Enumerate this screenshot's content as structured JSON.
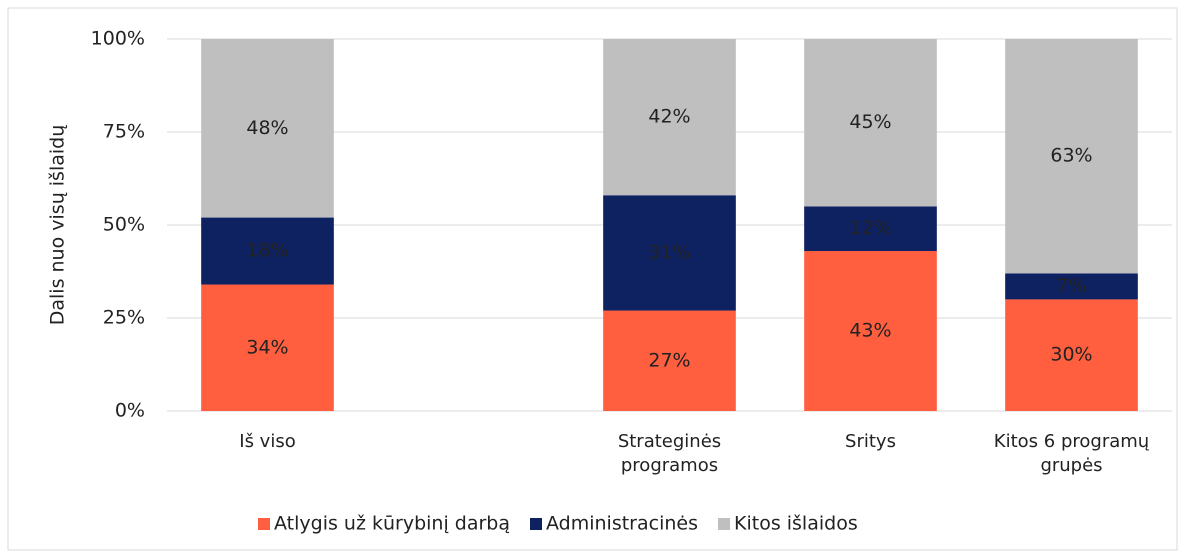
{
  "chart_data": {
    "type": "stacked_bar",
    "y_label": "Dalis nuo visų išlaidų",
    "categories": [
      "Iš viso",
      null,
      "Strateginės programos",
      "Sritys",
      "Kitos 6 programų grupės"
    ],
    "series": [
      {
        "name": "Atlygis už kūrybinį darbą",
        "color": "#ff5f3f",
        "label_color": "#222222",
        "values": [
          34,
          null,
          27,
          43,
          30
        ],
        "value_labels": [
          "34%",
          null,
          "27%",
          "43%",
          "30%"
        ]
      },
      {
        "name": "Administracinės",
        "color": "#0e2161",
        "label_color": "#ffffff",
        "values": [
          18,
          null,
          31,
          12,
          7
        ],
        "value_labels": [
          "18%",
          null,
          "31%",
          "12%",
          "7%"
        ]
      },
      {
        "name": "Kitos išlaidos",
        "color": "#bfbfbf",
        "label_color": "#222222",
        "values": [
          48,
          null,
          42,
          45,
          63
        ],
        "value_labels": [
          "48%",
          null,
          "42%",
          "45%",
          "63%"
        ]
      }
    ],
    "ylim": [
      0,
      100
    ],
    "yticks": [
      {
        "value": 0,
        "label": "0%"
      },
      {
        "value": 25,
        "label": "25%"
      },
      {
        "value": 50,
        "label": "50%"
      },
      {
        "value": 75,
        "label": "75%"
      },
      {
        "value": 100,
        "label": "100%"
      }
    ],
    "grid": true,
    "legend": "bottom"
  }
}
